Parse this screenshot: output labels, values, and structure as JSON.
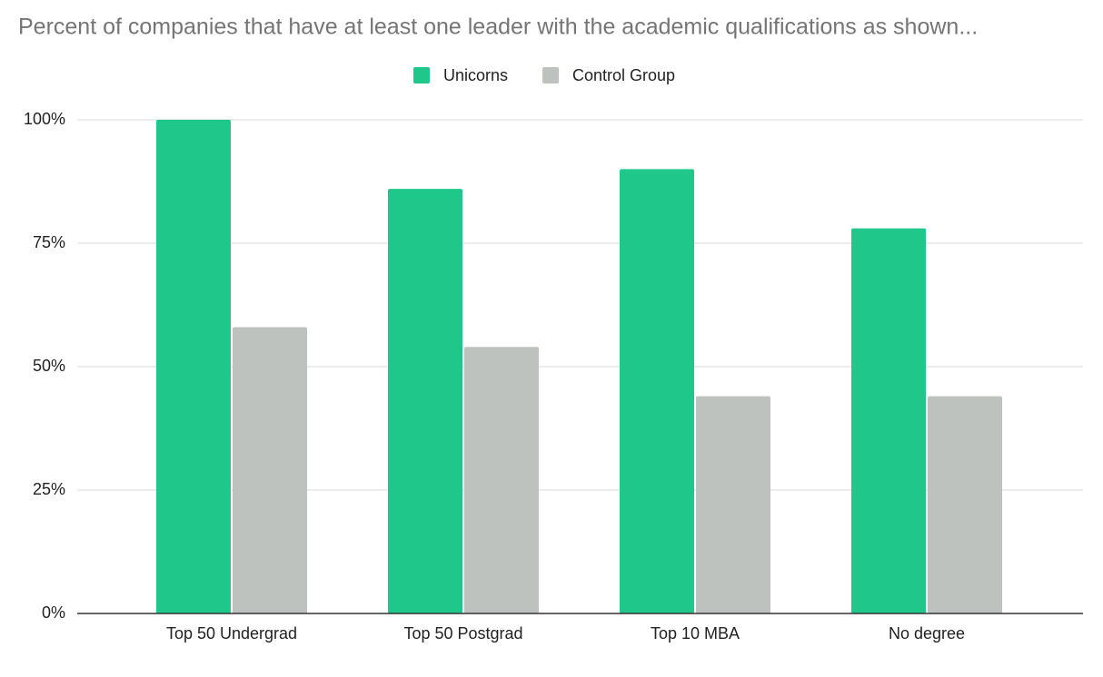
{
  "chart_data": {
    "type": "bar",
    "title": "Percent of companies that have at least one leader with the academic qualifications as shown...",
    "categories": [
      "Top 50 Undergrad",
      "Top 50 Postgrad",
      "Top 10 MBA",
      "No degree"
    ],
    "series": [
      {
        "name": "Unicorns",
        "color": "#20c78a",
        "values": [
          100,
          86,
          90,
          78
        ]
      },
      {
        "name": "Control Group",
        "color": "#bec2be",
        "values": [
          58,
          54,
          44,
          44
        ]
      }
    ],
    "ylim": [
      0,
      100
    ],
    "yticks": [
      {
        "value": 0,
        "label": "0%"
      },
      {
        "value": 25,
        "label": "25%"
      },
      {
        "value": 50,
        "label": "50%"
      },
      {
        "value": 75,
        "label": "75%"
      },
      {
        "value": 100,
        "label": "100%"
      }
    ],
    "grid": true,
    "legend": "top"
  }
}
